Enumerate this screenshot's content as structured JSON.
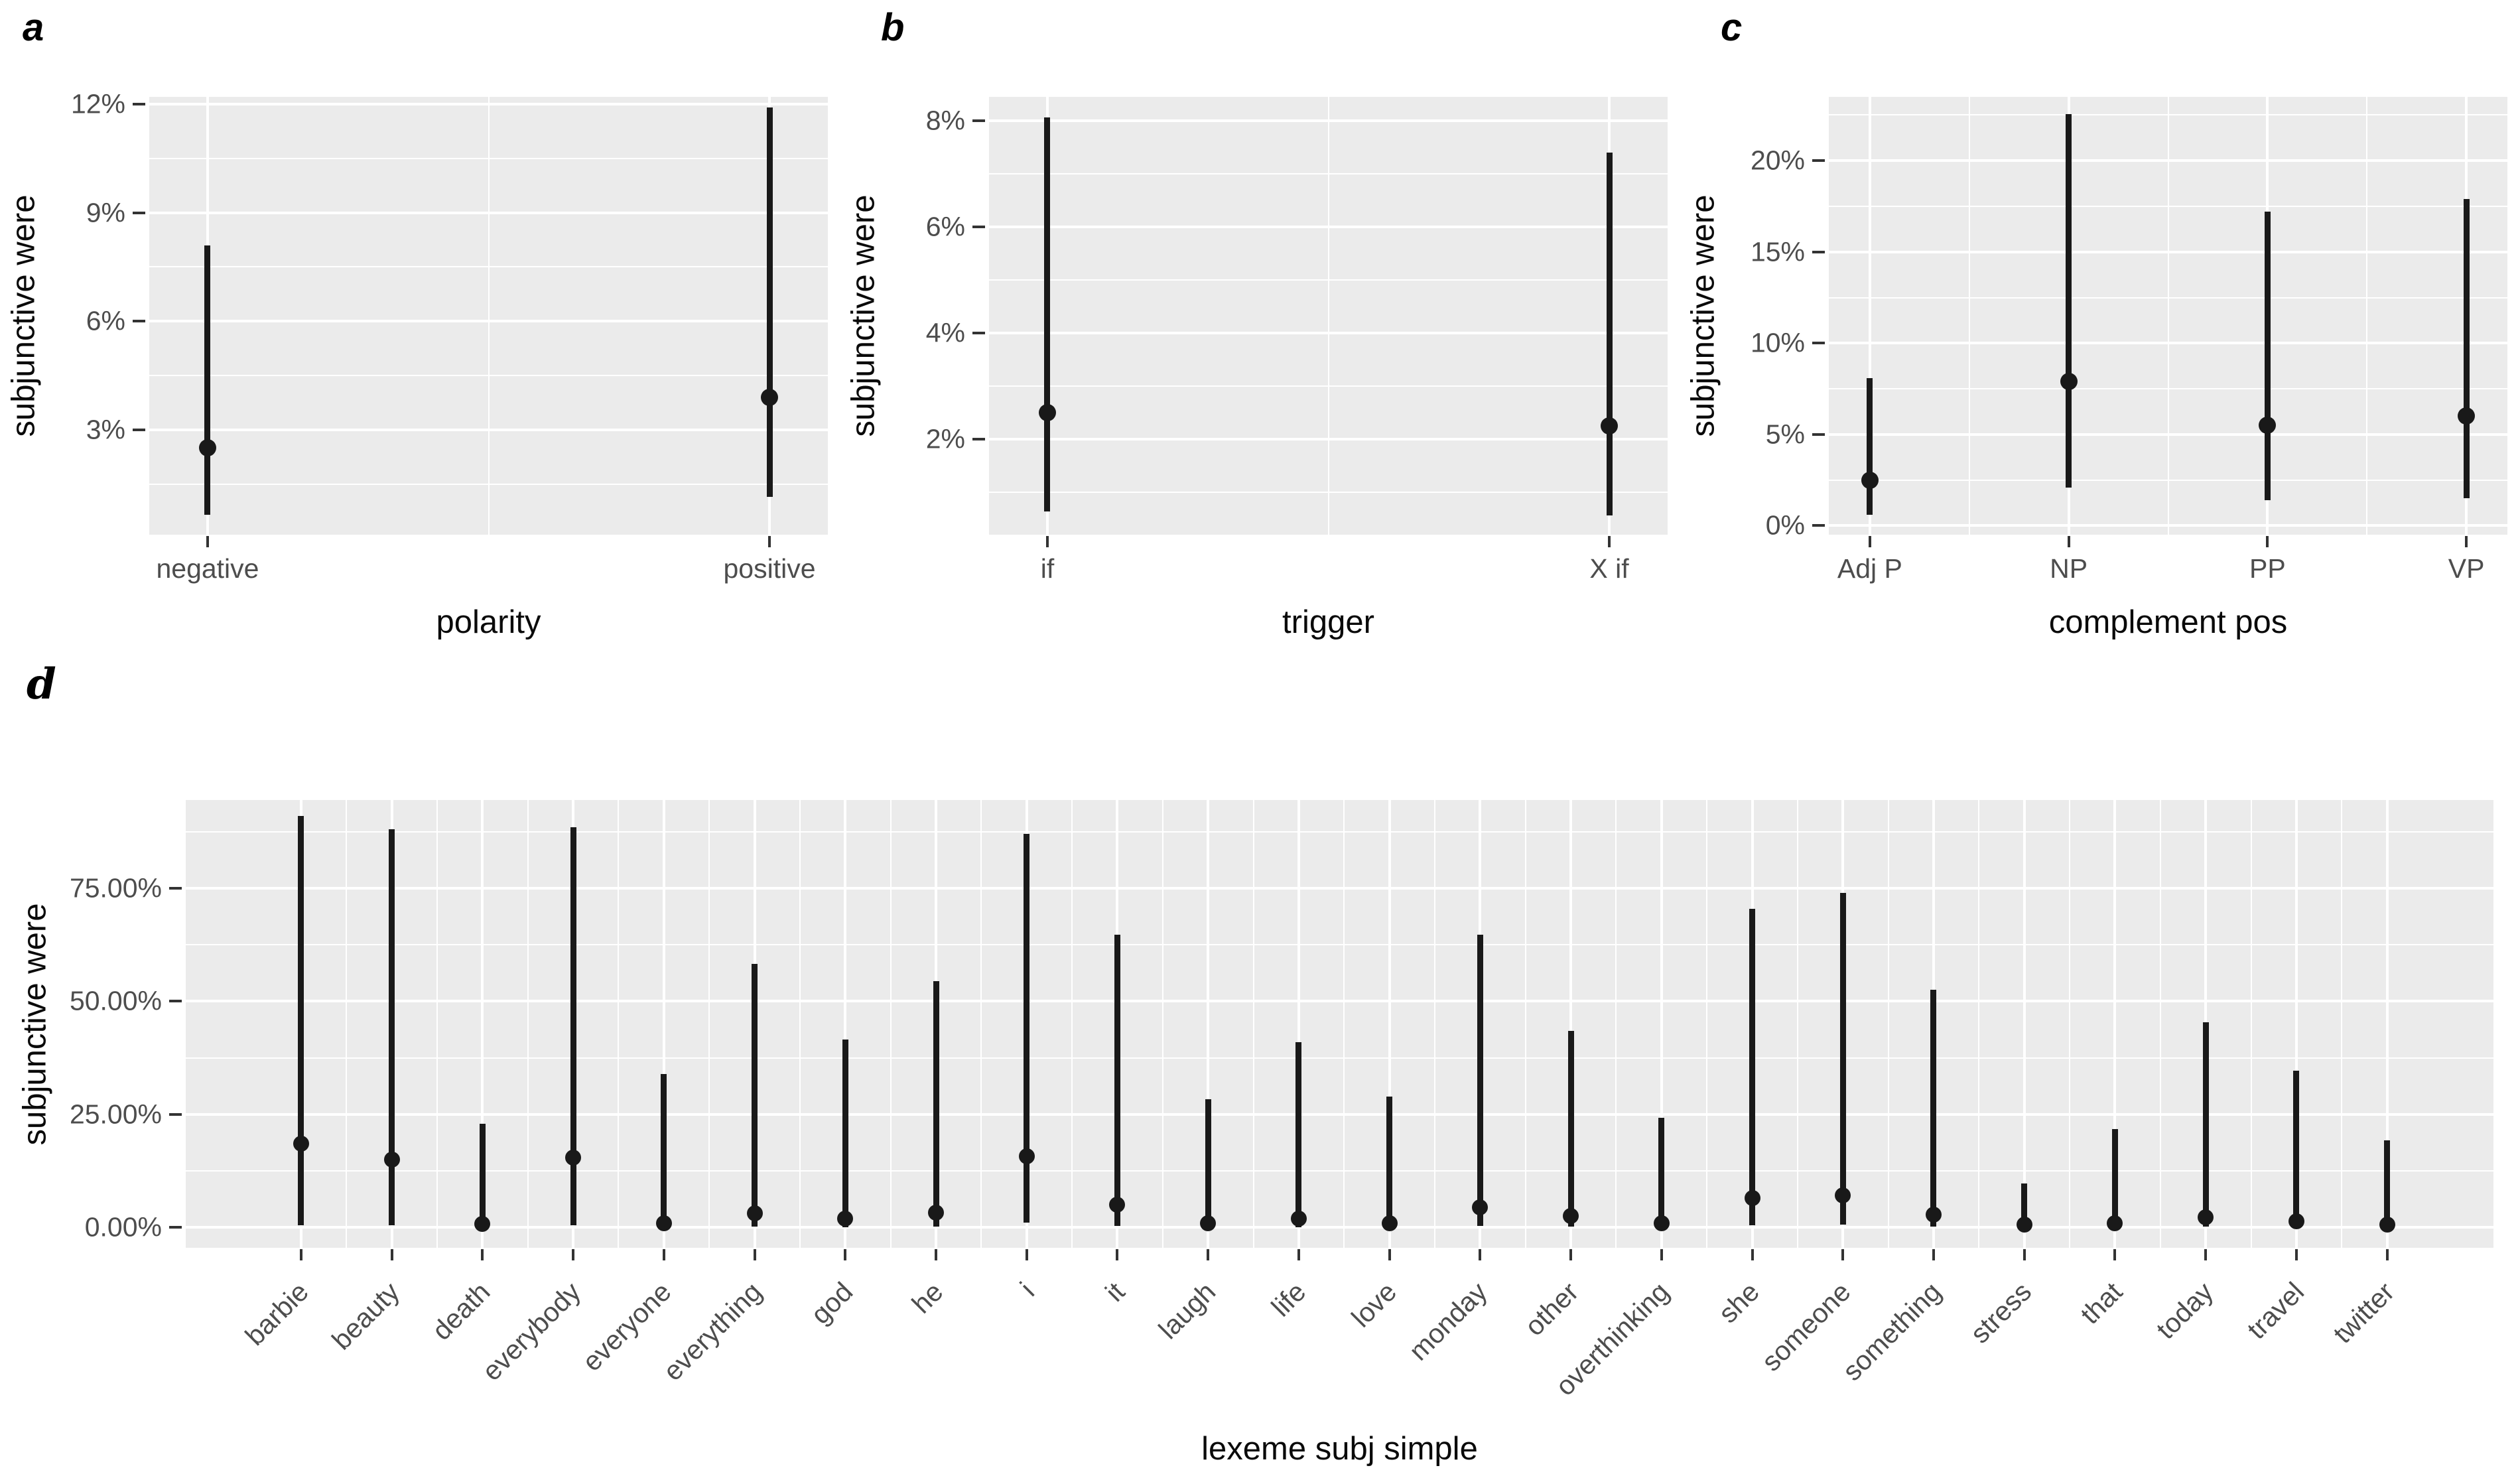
{
  "style": {
    "page_background": "#ffffff",
    "panel_background": "#ebebeb",
    "grid_color": "#ffffff",
    "mark_color": "#191919",
    "tick_mark_color": "#333333",
    "tick_label_color": "#4d4d4d",
    "axis_title_color": "#0a0a0a"
  },
  "chart_data": [
    {
      "id": "a",
      "type": "scatter",
      "subtype": "pointrange",
      "panel_label": "a",
      "xlabel": "polarity",
      "ylabel": "subjunctive were",
      "categories": [
        "negative",
        "positive"
      ],
      "points": [
        2.5,
        3.9
      ],
      "lower": [
        0.65,
        1.15
      ],
      "upper": [
        8.1,
        11.9
      ],
      "ylim": [
        0.1,
        12.2
      ],
      "ytick_values": [
        3,
        6,
        9,
        12
      ],
      "ytick_labels": [
        "3%",
        "6%",
        "9%",
        "12%"
      ],
      "yminor_values": [
        1.5,
        4.5,
        7.5,
        10.5
      ],
      "cat_positions_pct": [
        8.6,
        91.4
      ],
      "grid": true,
      "legend": "none",
      "unit": "percent"
    },
    {
      "id": "b",
      "type": "scatter",
      "subtype": "pointrange",
      "panel_label": "b",
      "xlabel": "trigger",
      "ylabel": "subjunctive were",
      "categories": [
        "if",
        "X if"
      ],
      "points": [
        2.5,
        2.25
      ],
      "lower": [
        0.64,
        0.56
      ],
      "upper": [
        8.06,
        7.4
      ],
      "ylim": [
        0.2,
        8.45
      ],
      "ytick_values": [
        2,
        4,
        6,
        8
      ],
      "ytick_labels": [
        "2%",
        "4%",
        "6%",
        "8%"
      ],
      "yminor_values": [
        1,
        3,
        5,
        7
      ],
      "cat_positions_pct": [
        8.6,
        91.4
      ],
      "grid": true,
      "legend": "none",
      "unit": "percent"
    },
    {
      "id": "c",
      "type": "scatter",
      "subtype": "pointrange",
      "panel_label": "c",
      "xlabel": "complement pos",
      "ylabel": "subjunctive were",
      "categories": [
        "Adj P",
        "NP",
        "PP",
        "VP"
      ],
      "points": [
        2.5,
        7.9,
        5.5,
        6.0
      ],
      "lower": [
        0.58,
        2.1,
        1.4,
        1.5
      ],
      "upper": [
        8.1,
        22.55,
        17.2,
        17.9
      ],
      "ylim": [
        -0.5,
        23.5
      ],
      "ytick_values": [
        0,
        5,
        10,
        15,
        20
      ],
      "ytick_labels": [
        "0%",
        "5%",
        "10%",
        "15%",
        "20%"
      ],
      "yminor_values": [
        2.5,
        7.5,
        12.5,
        17.5,
        22.5
      ],
      "cat_positions_pct": [
        6.05,
        35.35,
        64.65,
        93.95
      ],
      "grid": true,
      "legend": "none",
      "unit": "percent"
    },
    {
      "id": "d",
      "type": "scatter",
      "subtype": "pointrange",
      "panel_label": "d",
      "xlabel": "lexeme subj simple",
      "ylabel": "subjunctive were",
      "categories": [
        "barbie",
        "beauty",
        "death",
        "everybody",
        "everyone",
        "everything",
        "god",
        "he",
        "i",
        "it",
        "laugh",
        "life",
        "love",
        "monday",
        "other",
        "overthinking",
        "she",
        "someone",
        "something",
        "stress",
        "that",
        "today",
        "travel",
        "twitter"
      ],
      "points": [
        18.5,
        15,
        0.8,
        15.5,
        1,
        3.2,
        1.9,
        3.3,
        15.8,
        5,
        1,
        2,
        1,
        4.4,
        2.5,
        1,
        6.5,
        7.1,
        2.8,
        0.6,
        1,
        2.2,
        1.3,
        0.6
      ],
      "lower": [
        0.5,
        0.5,
        0.05,
        0.5,
        0.05,
        0.2,
        0.1,
        0.2,
        1.0,
        0.4,
        0.05,
        0.1,
        0.05,
        0.3,
        0.15,
        0.05,
        0.5,
        0.6,
        0.2,
        0.03,
        0.05,
        0.15,
        0.1,
        0.05
      ],
      "upper": [
        91,
        88,
        23,
        88.5,
        34,
        58.3,
        41.6,
        54.5,
        87,
        64.7,
        28.4,
        41,
        28.9,
        64.7,
        43.4,
        24.3,
        70.4,
        73.9,
        52.6,
        9.7,
        21.7,
        45.4,
        34.7,
        19.2
      ],
      "ylim": [
        -4.5,
        94.5
      ],
      "ytick_values": [
        0,
        25,
        50,
        75
      ],
      "ytick_labels": [
        "0.00%",
        "25.00%",
        "50.00%",
        "75.00%"
      ],
      "yminor_values": [
        12.5,
        37.5,
        62.5,
        87.5
      ],
      "cat_positions_pct": [
        5.0,
        8.93,
        12.86,
        16.79,
        20.72,
        24.65,
        28.58,
        32.51,
        36.44,
        40.37,
        44.3,
        48.23,
        52.16,
        56.09,
        60.02,
        63.95,
        67.88,
        71.81,
        75.74,
        79.67,
        83.6,
        87.53,
        91.46,
        95.39
      ],
      "grid": true,
      "legend": "none",
      "unit": "percent"
    }
  ]
}
